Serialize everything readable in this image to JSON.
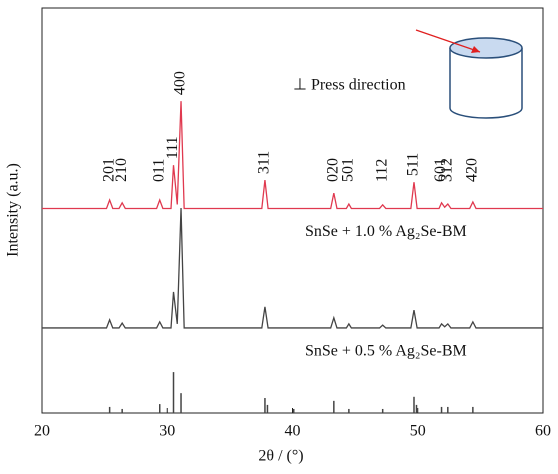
{
  "chart_data": {
    "type": "line",
    "xlabel": "2θ / (°)",
    "ylabel": "Intensity (a.u.)",
    "xlim": [
      20,
      60
    ],
    "xticks": [
      20,
      30,
      40,
      50,
      60
    ],
    "ylim": [
      0,
      100
    ],
    "x": [
      20,
      25.15,
      25.4,
      25.65,
      26.15,
      26.4,
      26.65,
      29.15,
      29.4,
      29.65,
      30.3,
      30.5,
      30.8,
      31.1,
      31.35,
      37.55,
      37.8,
      38.05,
      43.05,
      43.3,
      43.55,
      44.3,
      44.5,
      44.7,
      46.95,
      47.2,
      47.45,
      49.45,
      49.7,
      49.95,
      51.7,
      51.9,
      52.15,
      52.4,
      52.65,
      54.15,
      54.4,
      54.65,
      60
    ],
    "series": [
      {
        "name": "SnSe + 1.0 % Ag₂Se-BM",
        "color": "#e0394f",
        "values": [
          50.5,
          50.5,
          52.6,
          50.5,
          50.5,
          51.9,
          50.5,
          50.5,
          52.6,
          50.5,
          50.5,
          61.2,
          51.5,
          77.0,
          50.5,
          50.5,
          57.5,
          50.5,
          50.5,
          54.3,
          50.5,
          50.5,
          51.6,
          50.5,
          50.5,
          51.4,
          50.5,
          50.5,
          57.0,
          50.5,
          50.5,
          51.9,
          50.8,
          51.6,
          50.5,
          50.5,
          52.1,
          50.5,
          50.5
        ]
      },
      {
        "name": "SnSe + 0.5 % Ag₂Se-BM",
        "color": "#444444",
        "values": [
          21,
          21,
          23,
          21,
          21,
          22.2,
          21,
          21,
          22.5,
          21,
          21,
          29.9,
          22,
          50.6,
          21,
          21,
          26.2,
          21,
          21,
          23.5,
          21,
          21,
          22,
          21,
          21,
          21.7,
          21,
          21,
          25.4,
          21,
          21,
          22,
          21.3,
          22,
          21,
          21,
          22.5,
          21,
          21
        ]
      }
    ],
    "reference": {
      "color": "#444444",
      "x": [
        25.4,
        26.4,
        29.4,
        30.5,
        31.1,
        37.8,
        38.0,
        40.1,
        43.3,
        44.5,
        47.2,
        49.7,
        49.9,
        51.9,
        52.4,
        54.4
      ],
      "values": [
        1.5,
        1,
        2.2,
        10.1,
        4.9,
        3.7,
        2,
        1,
        3,
        1,
        1,
        4,
        2,
        1.5,
        1.5,
        1.5
      ]
    },
    "annotations": [
      {
        "text": "201",
        "x": 25.4
      },
      {
        "text": "210",
        "x": 26.4
      },
      {
        "text": "011",
        "x": 29.4
      },
      {
        "text": "111",
        "x": 30.5
      },
      {
        "text": "400",
        "x": 31.1
      },
      {
        "text": "311",
        "x": 37.8
      },
      {
        "text": "020",
        "x": 43.3
      },
      {
        "text": "501",
        "x": 44.5
      },
      {
        "text": "112",
        "x": 47.2
      },
      {
        "text": "511",
        "x": 49.7
      },
      {
        "text": "601",
        "x": 51.9
      },
      {
        "text": "312",
        "x": 52.4
      },
      {
        "text": "420",
        "x": 54.4
      }
    ],
    "inset_label": "⊥ Press direction"
  }
}
